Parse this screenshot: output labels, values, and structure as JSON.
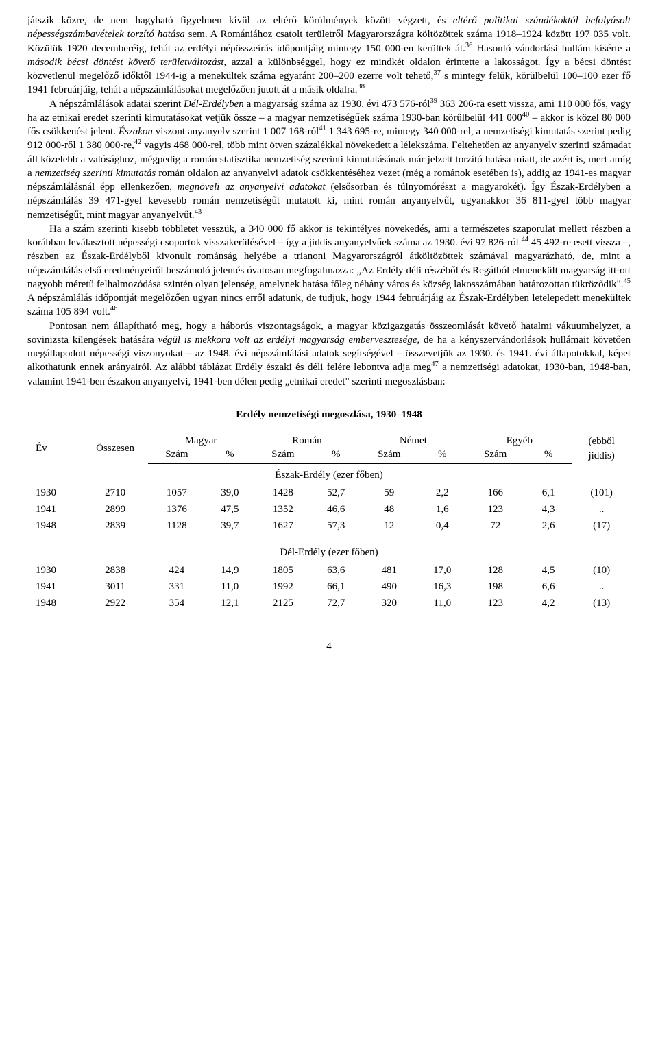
{
  "paragraphs": {
    "p1_a": "játszik közre, de nem hagyható figyelmen kívül az eltérő körülmények között végzett, és ",
    "p1_it1": "eltérő politikai szándékoktól befolyásolt népességszámbavételek torzító hatása",
    "p1_b": " sem. A Romániához csatolt területről Magyarországra költözöttek száma 1918–1924 között 197 035 volt. Közülük 1920 decemberéig, tehát az erdélyi népösszeírás időpontjáig mintegy 150 000-en kerültek át.",
    "p1_sup1": "36",
    "p1_c": " Hasonló vándorlási hullám kísérte a ",
    "p1_it2": "második bécsi döntést követő területváltozást",
    "p1_d": ", azzal a különbséggel, hogy ez mindkét oldalon érintette a lakosságot. Így a bécsi döntést közvetlenül megelőző időktől 1944-ig a menekültek száma egyaránt 200–200 ezerre volt tehető,",
    "p1_sup2": "37",
    "p1_e": " s mintegy felük, körülbelül 100–100 ezer fő 1941 februárjáig, tehát a népszámlálásokat megelőzően jutott át a másik oldalra.",
    "p1_sup3": "38",
    "p2_a": "A népszámlálások adatai szerint ",
    "p2_it1": "Dél-Erdélyben",
    "p2_b": " a magyarság száma az 1930. évi 473 576-ról",
    "p2_sup1": "39",
    "p2_c": " 363 206-ra esett vissza, ami 110 000 fős, vagy ha az etnikai eredet szerinti kimutatásokat vetjük össze – a magyar nemzetiségűek száma 1930-ban körülbelül 441 000",
    "p2_sup2": "40",
    "p2_d": " – akkor is közel 80 000 fős csökkenést jelent. ",
    "p2_it2": "Északon",
    "p2_e": " viszont anyanyelv szerint 1 007 168-ról",
    "p2_sup3": "41",
    "p2_f": " 1 343 695-re, mintegy 340 000-rel, a nemzetiségi kimutatás szerint pedig 912 000-ről 1 380 000-re,",
    "p2_sup4": "42",
    "p2_g": " vagyis 468 000-rel, több mint ötven százalékkal növekedett a lélekszáma. Feltehetően az anyanyelv szerinti számadat áll közelebb a valósághoz, mégpedig a román statisztika nemzetiség szerinti kimutatásának már jelzett torzító hatása miatt, de azért is, mert amíg a ",
    "p2_it3": "nemzetiség szerinti kimutatás",
    "p2_h": " román oldalon az anyanyelvi adatok csökkentéséhez vezet (még a románok esetében is), addig az 1941-es magyar népszámlálásnál épp ellenkezően, ",
    "p2_it4": "megnöveli az anyanyelvi adatokat",
    "p2_i": " (elsősorban és túlnyomórészt a magyarokét). Így Észak-Erdélyben a népszámlálás 39 471-gyel kevesebb román nemzetiségűt mutatott ki, mint román anyanyelvűt, ugyanakkor 36 811-gyel több magyar nemzetiségűt, mint magyar anyanyelvűt.",
    "p2_sup5": "43",
    "p3_a": "Ha a szám szerinti kisebb többletet vesszük, a 340 000 fő akkor is tekintélyes növekedés, ami a természetes szaporulat mellett részben a korábban leválasztott népességi csoportok visszakerülésével – így a jiddis anyanyelvűek száma az 1930. évi 97 826-ról ",
    "p3_sup1": "44",
    "p3_b": " 45 492-re esett vissza –, részben az Észak-Erdélyből kivonult románság helyébe a trianoni Magyarországról átköltözöttek számával magyarázható, de, mint a népszámlálás első eredményeiről beszámoló jelentés óvatosan megfogalmazza: „Az Erdély déli részéből és Regátból elmenekült magyarság itt-ott nagyobb méretű felhalmozódása szintén olyan jelenség, amelynek hatása főleg néhány város és község lakosszámában határozottan tükröződik\".",
    "p3_sup2": "45",
    "p3_c": " A népszámlálás időpontját megelőzően ugyan nincs erről adatunk, de tudjuk, hogy 1944 februárjáig az Észak-Erdélyben letelepedett menekültek száma 105 894 volt.",
    "p3_sup3": "46",
    "p4_a": "Pontosan nem állapítható meg, hogy a háborús viszontagságok, a magyar közigazgatás összeomlását követő hatalmi vákuumhelyzet, a sovinizsta kilengések hatására ",
    "p4_it1": "végül is mekkora volt az erdélyi magyarság embervesztesége",
    "p4_b": ", de ha a kényszervándorlások hullámait követően megállapodott népességi viszonyokat – az 1948. évi népszámlálási adatok segítségével – összevetjük az 1930. és 1941. évi állapotokkal, képet alkothatunk ennek arányairól. Az alábbi táblázat Erdély északi és déli felére lebontva adja meg",
    "p4_sup1": "47",
    "p4_c": " a nemzetiségi adatokat, 1930-ban, 1948-ban, valamint 1941-ben északon anyanyelvi, 1941-ben délen pedig „etnikai eredet\" szerinti megoszlásban:"
  },
  "table": {
    "title": "Erdély nemzetiségi megoszlása, 1930–1948",
    "headers": {
      "ev": "Év",
      "osszesen": "Összesen",
      "magyar": "Magyar",
      "roman": "Román",
      "nemet": "Német",
      "egyeb": "Egyéb",
      "jiddis": "(ebből jiddis)",
      "szam": "Szám",
      "pct": "%"
    },
    "sections": {
      "eszak": "Észak-Erdély (ezer főben)",
      "del": "Dél-Erdély (ezer főben)"
    },
    "eszak_rows": [
      {
        "ev": "1930",
        "ossz": "2710",
        "m_n": "1057",
        "m_p": "39,0",
        "r_n": "1428",
        "r_p": "52,7",
        "n_n": "59",
        "n_p": "2,2",
        "e_n": "166",
        "e_p": "6,1",
        "j": "(101)"
      },
      {
        "ev": "1941",
        "ossz": "2899",
        "m_n": "1376",
        "m_p": "47,5",
        "r_n": "1352",
        "r_p": "46,6",
        "n_n": "48",
        "n_p": "1,6",
        "e_n": "123",
        "e_p": "4,3",
        "j": ".."
      },
      {
        "ev": "1948",
        "ossz": "2839",
        "m_n": "1128",
        "m_p": "39,7",
        "r_n": "1627",
        "r_p": "57,3",
        "n_n": "12",
        "n_p": "0,4",
        "e_n": "72",
        "e_p": "2,6",
        "j": "(17)"
      }
    ],
    "del_rows": [
      {
        "ev": "1930",
        "ossz": "2838",
        "m_n": "424",
        "m_p": "14,9",
        "r_n": "1805",
        "r_p": "63,6",
        "n_n": "481",
        "n_p": "17,0",
        "e_n": "128",
        "e_p": "4,5",
        "j": "(10)"
      },
      {
        "ev": "1941",
        "ossz": "3011",
        "m_n": "331",
        "m_p": "11,0",
        "r_n": "1992",
        "r_p": "66,1",
        "n_n": "490",
        "n_p": "16,3",
        "e_n": "198",
        "e_p": "6,6",
        "j": ".."
      },
      {
        "ev": "1948",
        "ossz": "2922",
        "m_n": "354",
        "m_p": "12,1",
        "r_n": "2125",
        "r_p": "72,7",
        "n_n": "320",
        "n_p": "11,0",
        "e_n": "123",
        "e_p": "4,2",
        "j": "(13)"
      }
    ]
  },
  "page_number": "4"
}
